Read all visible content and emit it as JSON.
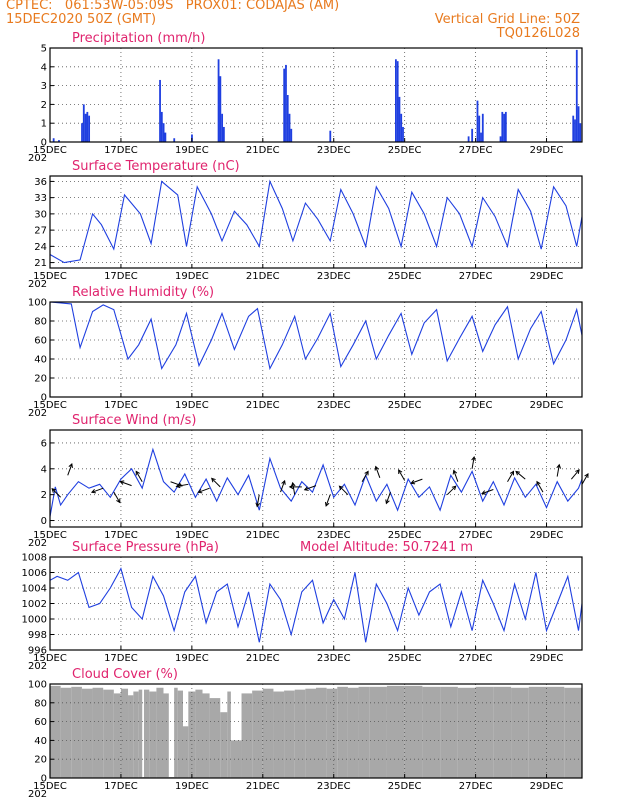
{
  "header": {
    "line1": "CPTEC:   061:53W-05:09S   PROX01: CODAJAS (AM)",
    "line2": "15DEC2020 50Z (GMT)",
    "right1": "Vertical Grid Line: 50Z",
    "right2": "TQ0126L028"
  },
  "colors": {
    "header": "#e87a1e",
    "title": "#e0246e",
    "line": "#1f3fe0",
    "cloud": "#a8a8a8",
    "grid": "#555555"
  },
  "x_axis": {
    "labels": [
      "15DEC",
      "17DEC",
      "19DEC",
      "21DEC",
      "23DEC",
      "25DEC",
      "27DEC",
      "29DEC"
    ],
    "label_days": [
      15,
      17,
      19,
      21,
      23,
      25,
      27,
      29
    ],
    "range_days": [
      15,
      30
    ],
    "year_stub": "202"
  },
  "chart_data": [
    {
      "type": "bar",
      "id": "precip",
      "title": "Precipitation (mm/h)",
      "ylim": [
        0,
        5
      ],
      "yticks": [
        0,
        1,
        2,
        3,
        4,
        5
      ],
      "grid": true,
      "x": [
        15.1,
        15.25,
        15.9,
        15.95,
        16.0,
        16.05,
        16.1,
        18.1,
        18.15,
        18.2,
        18.25,
        18.5,
        19.0,
        19.75,
        19.8,
        19.85,
        19.9,
        21.6,
        21.65,
        21.7,
        21.75,
        21.8,
        22.9,
        24.75,
        24.8,
        24.85,
        24.9,
        24.95,
        26.8,
        26.9,
        27.05,
        27.1,
        27.15,
        27.2,
        27.7,
        27.75,
        27.8,
        27.85,
        29.75,
        29.8,
        29.85,
        29.9,
        29.95
      ],
      "values": [
        0.2,
        0.1,
        1.0,
        2.0,
        1.5,
        1.6,
        1.4,
        3.3,
        1.6,
        1.0,
        0.5,
        0.2,
        0.4,
        4.4,
        3.5,
        1.5,
        0.8,
        3.9,
        4.1,
        2.5,
        1.5,
        0.7,
        0.6,
        4.4,
        4.3,
        2.4,
        1.5,
        0.8,
        0.3,
        0.7,
        2.2,
        1.4,
        0.5,
        1.5,
        0.3,
        1.6,
        1.5,
        1.6,
        1.4,
        1.2,
        4.9,
        1.9,
        1.0
      ]
    },
    {
      "type": "line",
      "id": "temp",
      "title": "Surface Temperature (nC)",
      "ylim": [
        20,
        37
      ],
      "yticks": [
        21,
        24,
        27,
        30,
        33,
        36
      ],
      "grid": true,
      "x": [
        15.0,
        15.4,
        15.85,
        16.2,
        16.45,
        16.8,
        17.1,
        17.55,
        17.85,
        18.15,
        18.6,
        18.85,
        19.15,
        19.55,
        19.85,
        20.2,
        20.55,
        20.9,
        21.2,
        21.55,
        21.85,
        22.2,
        22.55,
        22.9,
        23.2,
        23.55,
        23.9,
        24.2,
        24.55,
        24.9,
        25.2,
        25.55,
        25.9,
        26.2,
        26.55,
        26.9,
        27.2,
        27.55,
        27.9,
        28.2,
        28.55,
        28.85,
        29.2,
        29.55,
        29.85,
        30.0
      ],
      "values": [
        22.5,
        21.0,
        21.5,
        30.0,
        28.0,
        23.5,
        33.5,
        30.0,
        24.5,
        36.0,
        33.5,
        24.0,
        35.0,
        30.0,
        25.0,
        30.5,
        28.0,
        24.0,
        36.0,
        31.0,
        25.0,
        32.0,
        29.0,
        25.0,
        34.5,
        30.0,
        24.0,
        35.0,
        31.0,
        24.0,
        34.0,
        30.0,
        24.0,
        33.0,
        30.0,
        24.0,
        33.0,
        29.5,
        24.0,
        34.5,
        30.5,
        23.5,
        35.0,
        31.5,
        24.0,
        29.5
      ]
    },
    {
      "type": "line",
      "id": "rh",
      "title": "Relative Humidity (%)",
      "ylim": [
        0,
        100
      ],
      "yticks": [
        0,
        20,
        40,
        60,
        80,
        100
      ],
      "grid": true,
      "x": [
        15.0,
        15.6,
        15.85,
        16.2,
        16.5,
        16.8,
        17.2,
        17.5,
        17.85,
        18.15,
        18.55,
        18.85,
        19.2,
        19.55,
        19.85,
        20.2,
        20.6,
        20.85,
        21.2,
        21.55,
        21.9,
        22.2,
        22.55,
        22.9,
        23.2,
        23.55,
        23.9,
        24.2,
        24.55,
        24.9,
        25.2,
        25.55,
        25.9,
        26.2,
        26.55,
        26.9,
        27.2,
        27.55,
        27.9,
        28.2,
        28.55,
        28.85,
        29.2,
        29.55,
        29.85,
        30.0
      ],
      "values": [
        100,
        98,
        52,
        90,
        97,
        92,
        40,
        55,
        82,
        30,
        55,
        88,
        33,
        60,
        88,
        50,
        85,
        93,
        30,
        55,
        85,
        40,
        62,
        88,
        32,
        55,
        80,
        40,
        65,
        88,
        45,
        78,
        92,
        38,
        62,
        85,
        48,
        76,
        95,
        40,
        72,
        90,
        35,
        60,
        92,
        65
      ]
    },
    {
      "type": "line",
      "id": "wind",
      "title": "Surface Wind (m/s)",
      "ylim": [
        -0.5,
        7.0
      ],
      "yticks": [
        0,
        2,
        4,
        6
      ],
      "grid": true,
      "x": [
        15.0,
        15.15,
        15.3,
        15.5,
        15.8,
        16.1,
        16.4,
        16.7,
        17.0,
        17.3,
        17.6,
        17.9,
        18.2,
        18.5,
        18.8,
        19.1,
        19.4,
        19.7,
        20.0,
        20.3,
        20.6,
        20.9,
        21.2,
        21.5,
        21.8,
        22.1,
        22.4,
        22.7,
        23.0,
        23.3,
        23.6,
        23.9,
        24.2,
        24.5,
        24.8,
        25.1,
        25.4,
        25.7,
        26.0,
        26.3,
        26.6,
        26.9,
        27.2,
        27.5,
        27.8,
        28.1,
        28.4,
        28.7,
        29.0,
        29.3,
        29.6,
        29.9,
        30.0
      ],
      "values": [
        0.3,
        2.6,
        1.2,
        2.0,
        3.0,
        2.5,
        2.8,
        1.8,
        3.2,
        4.0,
        2.5,
        5.5,
        3.0,
        2.2,
        3.6,
        1.8,
        3.2,
        1.5,
        3.3,
        2.0,
        3.5,
        0.8,
        4.8,
        2.5,
        1.5,
        3.0,
        2.2,
        4.3,
        1.8,
        2.8,
        1.2,
        3.5,
        1.5,
        2.8,
        0.8,
        3.2,
        1.8,
        2.6,
        0.8,
        3.5,
        2.2,
        3.8,
        1.5,
        3.0,
        1.2,
        3.3,
        1.8,
        2.8,
        1.0,
        3.0,
        1.5,
        2.5,
        3.2
      ],
      "arrows": [
        {
          "x": 15.3,
          "y": 1.8,
          "dir_deg": 135
        },
        {
          "x": 15.5,
          "y": 3.5,
          "dir_deg": 70
        },
        {
          "x": 16.5,
          "y": 2.5,
          "dir_deg": 200
        },
        {
          "x": 16.8,
          "y": 2.2,
          "dir_deg": 300
        },
        {
          "x": 17.3,
          "y": 2.7,
          "dir_deg": 160
        },
        {
          "x": 17.6,
          "y": 3.0,
          "dir_deg": 120
        },
        {
          "x": 18.4,
          "y": 3.0,
          "dir_deg": 340
        },
        {
          "x": 18.9,
          "y": 2.8,
          "dir_deg": 190
        },
        {
          "x": 19.5,
          "y": 2.5,
          "dir_deg": 200
        },
        {
          "x": 19.8,
          "y": 2.6,
          "dir_deg": 135
        },
        {
          "x": 20.9,
          "y": 2.0,
          "dir_deg": 260
        },
        {
          "x": 21.5,
          "y": 2.2,
          "dir_deg": 70
        },
        {
          "x": 21.9,
          "y": 2.0,
          "dir_deg": 100
        },
        {
          "x": 22.1,
          "y": 2.6,
          "dir_deg": 180
        },
        {
          "x": 22.5,
          "y": 2.7,
          "dir_deg": 200
        },
        {
          "x": 22.9,
          "y": 2.0,
          "dir_deg": 250
        },
        {
          "x": 23.4,
          "y": 2.0,
          "dir_deg": 135
        },
        {
          "x": 23.8,
          "y": 3.0,
          "dir_deg": 60
        },
        {
          "x": 24.3,
          "y": 3.3,
          "dir_deg": 110
        },
        {
          "x": 24.6,
          "y": 2.2,
          "dir_deg": 250
        },
        {
          "x": 25.0,
          "y": 3.1,
          "dir_deg": 120
        },
        {
          "x": 25.5,
          "y": 3.2,
          "dir_deg": 200
        },
        {
          "x": 26.2,
          "y": 2.0,
          "dir_deg": 45
        },
        {
          "x": 26.5,
          "y": 3.0,
          "dir_deg": 110
        },
        {
          "x": 26.9,
          "y": 4.0,
          "dir_deg": 80
        },
        {
          "x": 27.5,
          "y": 2.4,
          "dir_deg": 200
        },
        {
          "x": 27.9,
          "y": 3.0,
          "dir_deg": 60
        },
        {
          "x": 28.4,
          "y": 3.2,
          "dir_deg": 140
        },
        {
          "x": 28.9,
          "y": 2.2,
          "dir_deg": 120
        },
        {
          "x": 29.3,
          "y": 3.4,
          "dir_deg": 80
        },
        {
          "x": 29.7,
          "y": 3.2,
          "dir_deg": 50
        },
        {
          "x": 30.0,
          "y": 2.8,
          "dir_deg": 60
        }
      ]
    },
    {
      "type": "line",
      "id": "press",
      "title": "Surface Pressure (hPa)",
      "annotation": "Model Altitude: 50.7241  m",
      "ylim": [
        996,
        1008
      ],
      "yticks": [
        996,
        998,
        1000,
        1002,
        1004,
        1006,
        1008
      ],
      "grid": true,
      "x": [
        15.0,
        15.2,
        15.5,
        15.8,
        16.1,
        16.4,
        16.7,
        17.0,
        17.3,
        17.6,
        17.9,
        18.2,
        18.5,
        18.8,
        19.1,
        19.4,
        19.7,
        20.0,
        20.3,
        20.6,
        20.9,
        21.2,
        21.5,
        21.8,
        22.1,
        22.4,
        22.7,
        23.0,
        23.3,
        23.6,
        23.9,
        24.2,
        24.5,
        24.8,
        25.1,
        25.4,
        25.7,
        26.0,
        26.3,
        26.6,
        26.9,
        27.2,
        27.5,
        27.8,
        28.1,
        28.4,
        28.7,
        29.0,
        29.3,
        29.6,
        29.9,
        30.0
      ],
      "values": [
        1005.0,
        1005.5,
        1005.0,
        1006.0,
        1001.5,
        1002.0,
        1004.0,
        1006.5,
        1001.5,
        1000.0,
        1005.5,
        1003.0,
        998.5,
        1003.5,
        1005.5,
        999.5,
        1003.5,
        1004.5,
        999.0,
        1003.5,
        997.0,
        1004.5,
        1002.5,
        998.0,
        1003.5,
        1005.0,
        999.5,
        1002.5,
        1000.0,
        1006.0,
        997.0,
        1004.5,
        1002.0,
        998.5,
        1004.0,
        1000.5,
        1003.5,
        1004.5,
        999.0,
        1003.5,
        998.5,
        1005.0,
        1002.0,
        998.5,
        1004.5,
        1000.0,
        1006.0,
        998.5,
        1002.0,
        1005.5,
        998.5,
        1002.0
      ]
    },
    {
      "type": "area",
      "id": "cloud",
      "title": "Cloud Cover (%)",
      "ylim": [
        0,
        100
      ],
      "yticks": [
        0,
        20,
        40,
        60,
        80,
        100
      ],
      "grid": true,
      "x": [
        15.0,
        15.3,
        15.6,
        15.9,
        16.2,
        16.5,
        16.8,
        17.0,
        17.2,
        17.35,
        17.5,
        17.6,
        17.65,
        17.8,
        18.0,
        18.2,
        18.35,
        18.5,
        18.6,
        18.75,
        18.9,
        19.1,
        19.3,
        19.5,
        19.8,
        20.0,
        20.1,
        20.4,
        20.7,
        21.0,
        21.3,
        21.6,
        21.9,
        22.2,
        22.5,
        22.8,
        23.1,
        23.4,
        23.7,
        24.0,
        24.5,
        25.0,
        25.5,
        26.0,
        26.5,
        27.0,
        27.5,
        28.0,
        28.5,
        29.0,
        29.5,
        30.0
      ],
      "values": [
        98,
        96,
        97,
        95,
        96,
        94,
        90,
        95,
        88,
        92,
        94,
        1,
        94,
        92,
        96,
        90,
        1,
        96,
        93,
        55,
        92,
        94,
        90,
        85,
        70,
        92,
        40,
        90,
        93,
        95,
        92,
        93,
        94,
        95,
        96,
        95,
        97,
        96,
        97,
        97,
        98,
        98,
        97,
        97,
        96,
        97,
        97,
        96,
        97,
        97,
        96,
        96
      ]
    }
  ]
}
